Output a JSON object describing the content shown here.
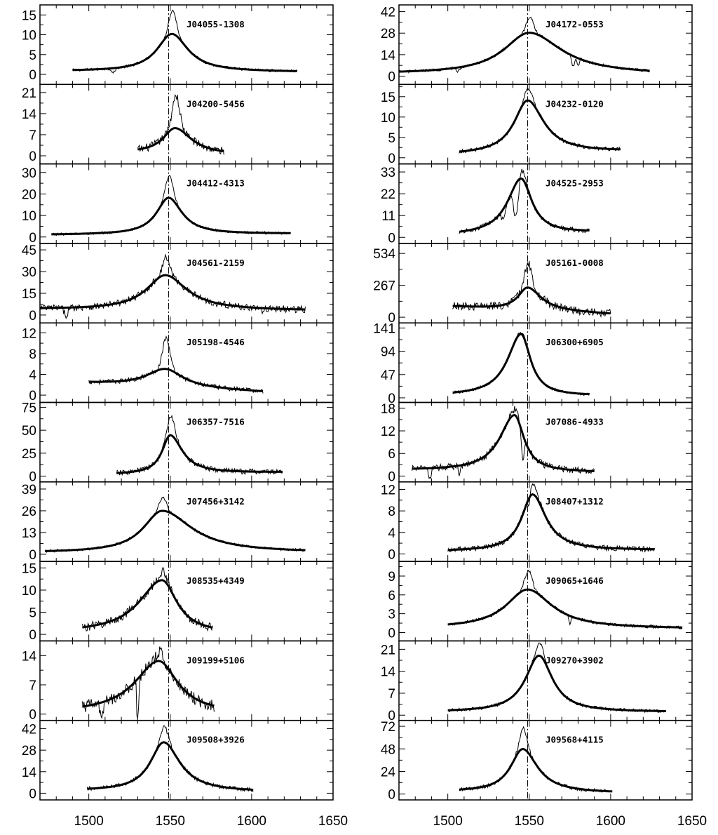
{
  "chart_data": {
    "type": "line",
    "x_ticks": [
      1500,
      1550,
      1600,
      1650
    ],
    "xlim": [
      1470,
      1650
    ],
    "reference_line_x": 1549,
    "grid": false,
    "panels": [
      {
        "name": "J04055-1308",
        "ylim": [
          -2,
          17
        ],
        "yticks": [
          0,
          5,
          10,
          15
        ],
        "range": [
          1490,
          1628
        ],
        "peak": 1551,
        "amp": 9.5,
        "widthL": 11,
        "widthR": 12,
        "contL": 0.8,
        "contR": 0.6,
        "narrow": 6,
        "noise": 0.35,
        "absorb": [
          {
            "x": 1515,
            "d": 1.2,
            "w": 1
          }
        ]
      },
      {
        "name": "J04200-5456",
        "ylim": [
          -2,
          23
        ],
        "yticks": [
          0,
          7,
          14,
          21
        ],
        "range": [
          1530,
          1583
        ],
        "peak": 1553,
        "amp": 8.5,
        "widthL": 9,
        "widthR": 12,
        "contL": 1.0,
        "contR": 0.3,
        "narrow": 11,
        "noise": 1.4,
        "absorb": []
      },
      {
        "name": "J04412-4313",
        "ylim": [
          -2,
          33
        ],
        "yticks": [
          0,
          10,
          20,
          30
        ],
        "range": [
          1477,
          1624
        ],
        "peak": 1549,
        "amp": 17,
        "widthL": 9,
        "widthR": 10,
        "contL": 1.0,
        "contR": 1.5,
        "narrow": 10,
        "noise": 0.6,
        "absorb": []
      },
      {
        "name": "J04561-2159",
        "ylim": [
          -4,
          48
        ],
        "yticks": [
          0,
          15,
          30,
          45
        ],
        "range": [
          1470,
          1633
        ],
        "peak": 1547,
        "amp": 24,
        "widthL": 14,
        "widthR": 16,
        "contL": 4,
        "contR": 3,
        "narrow": 12,
        "noise": 2.4,
        "absorb": [
          {
            "x": 1486,
            "d": 5,
            "w": 1.2
          },
          {
            "x": 1607,
            "d": 3,
            "w": 1
          }
        ]
      },
      {
        "name": "J05198-4546",
        "ylim": [
          -1,
          13.5
        ],
        "yticks": [
          0,
          4,
          8,
          12
        ],
        "range": [
          1500,
          1607
        ],
        "peak": 1547,
        "amp": 3.5,
        "widthL": 14,
        "widthR": 13,
        "contL": 2.3,
        "contR": 0.6,
        "narrow": 6,
        "noise": 0.45,
        "absorb": []
      },
      {
        "name": "J06357-7516",
        "ylim": [
          -4,
          78
        ],
        "yticks": [
          0,
          25,
          50,
          75
        ],
        "range": [
          1517,
          1619
        ],
        "peak": 1550,
        "amp": 42,
        "widthL": 6,
        "widthR": 9,
        "contL": 2,
        "contR": 4,
        "narrow": 20,
        "noise": 3,
        "absorb": []
      },
      {
        "name": "J07456+3142",
        "ylim": [
          -3,
          42
        ],
        "yticks": [
          0,
          13,
          26,
          39
        ],
        "range": [
          1473,
          1633
        ],
        "peak": 1545,
        "amp": 25,
        "widthL": 14,
        "widthR": 22,
        "contL": 1,
        "contR": 1,
        "narrow": 8,
        "noise": 0.8,
        "absorb": []
      },
      {
        "name": "J08535+4349",
        "ylim": [
          -1,
          16
        ],
        "yticks": [
          0,
          5,
          10,
          15
        ],
        "range": [
          1496,
          1576
        ],
        "peak": 1545,
        "amp": 12,
        "widthL": 17,
        "widthR": 11,
        "contL": 0.3,
        "contR": 0.2,
        "narrow": 2,
        "noise": 1.0,
        "absorb": []
      },
      {
        "name": "J09199+5106",
        "ylim": [
          -1,
          17
        ],
        "yticks": [
          0,
          7,
          14
        ],
        "range": [
          1496,
          1577
        ],
        "peak": 1543,
        "amp": 12.5,
        "widthL": 18,
        "widthR": 14,
        "contL": 0.2,
        "contR": 0.2,
        "narrow": 2,
        "noise": 1.5,
        "absorb": [
          {
            "x": 1530,
            "d": 12,
            "w": 0.5
          },
          {
            "x": 1508,
            "d": 4,
            "w": 1
          }
        ]
      },
      {
        "name": "J09508+3926",
        "ylim": [
          -3,
          46
        ],
        "yticks": [
          0,
          14,
          28,
          42
        ],
        "range": [
          1499,
          1601
        ],
        "peak": 1546,
        "amp": 32,
        "widthL": 10,
        "widthR": 12,
        "contL": 1.5,
        "contR": 0.8,
        "narrow": 10,
        "noise": 1.3,
        "absorb": []
      },
      {
        "name": "J04172-0553",
        "ylim": [
          -4,
          45
        ],
        "yticks": [
          0,
          14,
          28,
          42
        ],
        "range": [
          1470,
          1624
        ],
        "peak": 1550,
        "amp": 27,
        "widthL": 19,
        "widthR": 24,
        "contL": 1.5,
        "contR": 1.0,
        "narrow": 10,
        "noise": 0.9,
        "absorb": [
          {
            "x": 1506,
            "d": 3,
            "w": 1
          },
          {
            "x": 1577,
            "d": 7,
            "w": 0.8
          },
          {
            "x": 1580,
            "d": 5,
            "w": 0.6
          }
        ]
      },
      {
        "name": "J04232-0120",
        "ylim": [
          -1,
          17.5
        ],
        "yticks": [
          0,
          5,
          10,
          15
        ],
        "range": [
          1507,
          1606
        ],
        "peak": 1549,
        "amp": 13,
        "widthL": 10,
        "widthR": 12,
        "contL": 0.8,
        "contR": 1.5,
        "narrow": 3,
        "noise": 0.45,
        "absorb": []
      },
      {
        "name": "J04525-2953",
        "ylim": [
          -2,
          36
        ],
        "yticks": [
          0,
          11,
          22,
          33
        ],
        "range": [
          1507,
          1587
        ],
        "peak": 1545,
        "amp": 28,
        "widthL": 10,
        "widthR": 8,
        "contL": 1.0,
        "contR": 2.5,
        "narrow": 5,
        "noise": 1.2,
        "absorb": [
          {
            "x": 1542,
            "d": 18,
            "w": 1.5
          },
          {
            "x": 1534,
            "d": 5,
            "w": 1
          }
        ]
      },
      {
        "name": "J05161-0008",
        "ylim": [
          -30,
          600
        ],
        "yticks": [
          0,
          267,
          534
        ],
        "range": [
          1503,
          1600
        ],
        "peak": 1549,
        "amp": 190,
        "widthL": 7,
        "widthR": 10,
        "contL": 90,
        "contR": 25,
        "narrow": 200,
        "noise": 35,
        "absorb": []
      },
      {
        "name": "J06300+6905",
        "ylim": [
          -5,
          147
        ],
        "yticks": [
          0,
          47,
          94,
          141
        ],
        "range": [
          1503,
          1587
        ],
        "peak": 1545,
        "amp": 125,
        "widthL": 10,
        "widthR": 7,
        "contL": 4,
        "contR": 4,
        "narrow": 4,
        "noise": 3,
        "absorb": []
      },
      {
        "name": "J07086-4933",
        "ylim": [
          -1,
          19
        ],
        "yticks": [
          0,
          6,
          12,
          18
        ],
        "range": [
          1478,
          1590
        ],
        "peak": 1541,
        "amp": 15,
        "widthL": 11,
        "widthR": 7,
        "contL": 1.5,
        "contR": 1.0,
        "narrow": 1.5,
        "noise": 0.9,
        "absorb": [
          {
            "x": 1546,
            "d": 7,
            "w": 0.8
          },
          {
            "x": 1489,
            "d": 3,
            "w": 0.7
          },
          {
            "x": 1507,
            "d": 2,
            "w": 0.7
          }
        ]
      },
      {
        "name": "J08407+1312",
        "ylim": [
          -1,
          13
        ],
        "yticks": [
          0,
          4,
          8,
          12
        ],
        "range": [
          1500,
          1627
        ],
        "peak": 1552,
        "amp": 10.5,
        "widthL": 8,
        "widthR": 10,
        "contL": 0.5,
        "contR": 0.7,
        "narrow": 2,
        "noise": 0.5,
        "absorb": [
          {
            "x": 1550,
            "d": 2.5,
            "w": 0.6
          }
        ]
      },
      {
        "name": "J09065+1646",
        "ylim": [
          -1,
          11
        ],
        "yticks": [
          0,
          3,
          6,
          9
        ],
        "range": [
          1500,
          1644
        ],
        "peak": 1549,
        "amp": 6.2,
        "widthL": 16,
        "widthR": 18,
        "contL": 0.7,
        "contR": 0.6,
        "narrow": 3,
        "noise": 0.25,
        "absorb": [
          {
            "x": 1575,
            "d": 1.2,
            "w": 0.5
          }
        ]
      },
      {
        "name": "J09270+3902",
        "ylim": [
          -1,
          23
        ],
        "yticks": [
          0,
          7,
          14,
          21
        ],
        "range": [
          1500,
          1634
        ],
        "peak": 1556,
        "amp": 18,
        "widthL": 10,
        "widthR": 10,
        "contL": 1.0,
        "contR": 1.0,
        "narrow": 4,
        "noise": 0.5,
        "absorb": []
      },
      {
        "name": "J09568+4115",
        "ylim": [
          -4,
          76
        ],
        "yticks": [
          0,
          24,
          48,
          72
        ],
        "range": [
          1507,
          1601
        ],
        "peak": 1546,
        "amp": 46,
        "widthL": 9,
        "widthR": 11,
        "contL": 2.5,
        "contR": 1.0,
        "narrow": 22,
        "noise": 2.0,
        "absorb": []
      }
    ]
  }
}
